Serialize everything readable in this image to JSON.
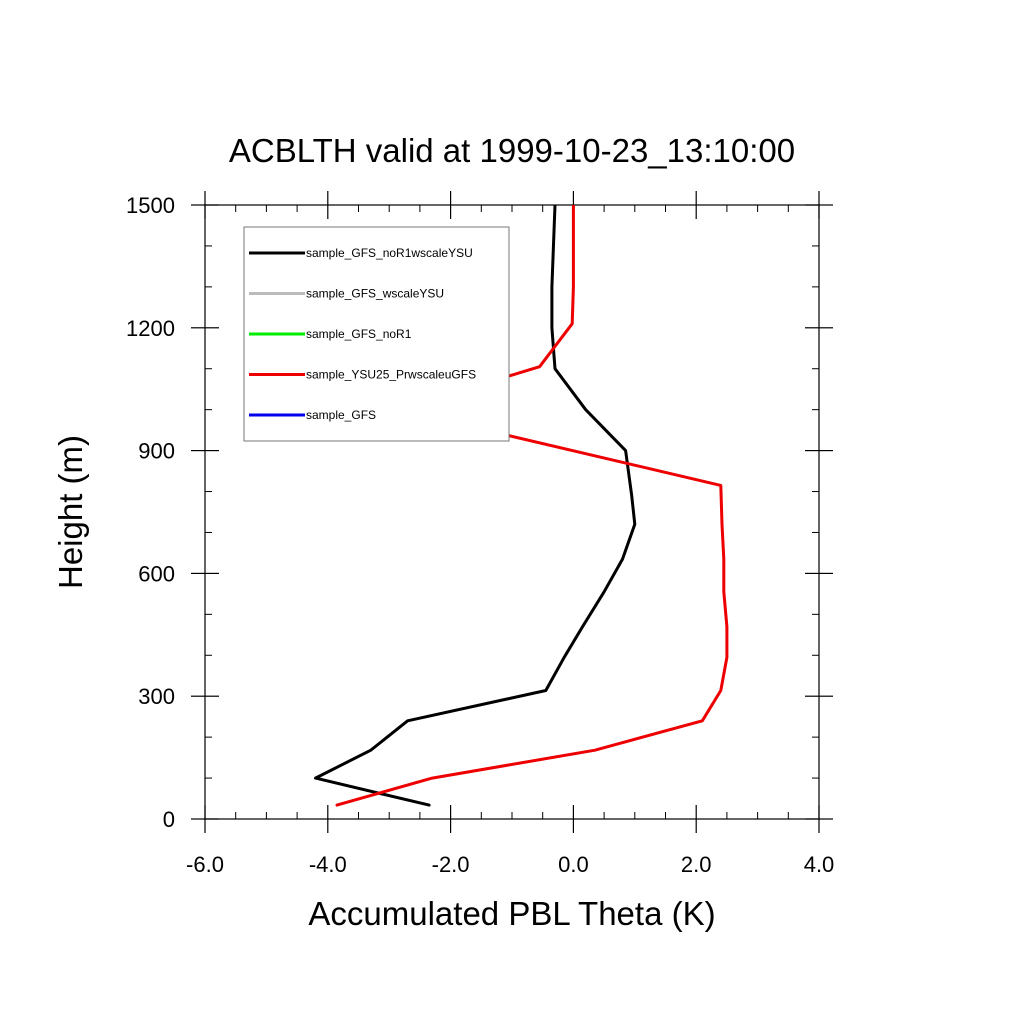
{
  "chart_data": {
    "type": "line",
    "title": "ACBLTH valid at 1999-10-23_13:10:00",
    "xlabel": "Accumulated PBL Theta (K)",
    "ylabel": "Height (m)",
    "xlim": [
      -6.0,
      4.0
    ],
    "ylim": [
      0,
      1500
    ],
    "x_ticks": [
      -6.0,
      -4.0,
      -2.0,
      0.0,
      2.0,
      4.0
    ],
    "x_tick_labels": [
      "-6.0",
      "-4.0",
      "-2.0",
      "0.0",
      "2.0",
      "4.0"
    ],
    "y_ticks": [
      0,
      300,
      600,
      900,
      1200,
      1500
    ],
    "y_tick_labels": [
      "0",
      "300",
      "600",
      "900",
      "1200",
      "1500"
    ],
    "grid": false,
    "legend_position": "top-left",
    "series": [
      {
        "name": "sample_GFS_noR1wscaleYSU",
        "color": "#000000",
        "points": [
          [
            -2.35,
            34
          ],
          [
            -4.2,
            100
          ],
          [
            -3.3,
            168
          ],
          [
            -2.7,
            240
          ],
          [
            -0.45,
            314
          ],
          [
            -0.15,
            395
          ],
          [
            0.15,
            470
          ],
          [
            0.5,
            555
          ],
          [
            0.8,
            635
          ],
          [
            1.0,
            720
          ],
          [
            0.95,
            790
          ],
          [
            0.85,
            900
          ],
          [
            0.2,
            1000
          ],
          [
            -0.3,
            1100
          ],
          [
            -0.35,
            1200
          ],
          [
            -0.35,
            1300
          ],
          [
            -0.3,
            1500
          ]
        ]
      },
      {
        "name": "sample_GFS_wscaleYSU",
        "color": "#bbbbbb",
        "points": []
      },
      {
        "name": "sample_GFS_noR1",
        "color": "#00ee00",
        "points": []
      },
      {
        "name": "sample_YSU25_PrwscaleuGFS",
        "color": "#ee0000",
        "points": [
          [
            -3.85,
            34
          ],
          [
            -2.3,
            100
          ],
          [
            0.35,
            168
          ],
          [
            2.1,
            240
          ],
          [
            2.4,
            314
          ],
          [
            2.5,
            395
          ],
          [
            2.5,
            470
          ],
          [
            2.45,
            555
          ],
          [
            2.45,
            635
          ],
          [
            2.42,
            720
          ],
          [
            2.4,
            815
          ],
          [
            -2.85,
            1000
          ],
          [
            -0.55,
            1105
          ],
          [
            -0.02,
            1210
          ],
          [
            0.0,
            1300
          ],
          [
            0.0,
            1500
          ]
        ]
      },
      {
        "name": "sample_GFS",
        "color": "#0000ee",
        "points": []
      }
    ]
  }
}
